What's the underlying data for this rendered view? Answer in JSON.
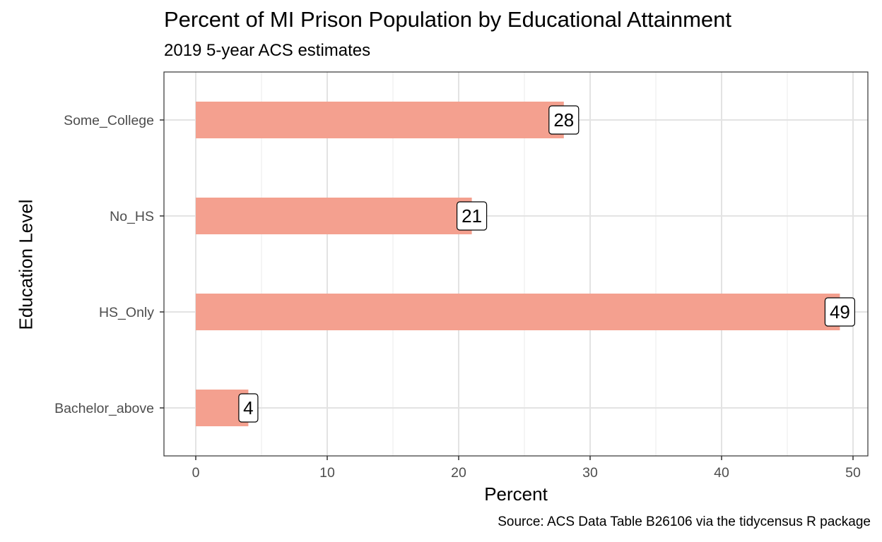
{
  "chart_data": {
    "type": "bar",
    "orientation": "horizontal",
    "title": "Percent of MI Prison Population by Educational Attainment",
    "subtitle": "2019 5-year ACS estimates",
    "caption": "Source: ACS Data Table B26106 via the tidycensus R package",
    "xlabel": "Percent",
    "ylabel": "Education Level",
    "categories": [
      "Bachelor_above",
      "HS_Only",
      "No_HS",
      "Some_College"
    ],
    "values": [
      4,
      49,
      21,
      28
    ],
    "data_labels": [
      "4",
      "49",
      "21",
      "28"
    ],
    "xlim": [
      0,
      51
    ],
    "x_ticks": [
      0,
      10,
      20,
      30,
      40,
      50
    ],
    "x_tick_labels": [
      "0",
      "10",
      "20",
      "30",
      "40",
      "50"
    ],
    "grid": true,
    "legend": "none",
    "bar_color": "#f4a08f"
  }
}
